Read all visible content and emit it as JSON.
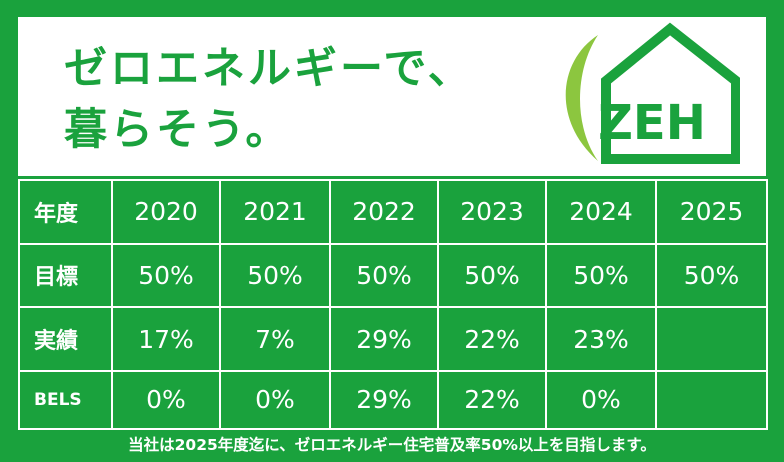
{
  "headline": {
    "line1": "ゼロエネルギーで、",
    "line2": "暮らそう。"
  },
  "logo": {
    "text": "ZEH",
    "icon": "house-logo-icon",
    "colors": {
      "primary": "#1aa23d",
      "accent": "#8cc63f"
    }
  },
  "table": {
    "header": {
      "label": "年度",
      "years": [
        "2020",
        "2021",
        "2022",
        "2023",
        "2024",
        "2025"
      ]
    },
    "rows": [
      {
        "label": "目標",
        "values": [
          "50%",
          "50%",
          "50%",
          "50%",
          "50%",
          "50%"
        ]
      },
      {
        "label": "実績",
        "values": [
          "17%",
          "7%",
          "29%",
          "22%",
          "23%",
          ""
        ]
      },
      {
        "label": "BELS",
        "values": [
          "0%",
          "0%",
          "29%",
          "22%",
          "0%",
          ""
        ]
      }
    ]
  },
  "footer": "当社は2025年度迄に、ゼロエネルギー住宅普及率50%以上を目指します。",
  "colors": {
    "background": "#1aa23d",
    "panel": "#ffffff",
    "text_on_green": "#ffffff"
  }
}
